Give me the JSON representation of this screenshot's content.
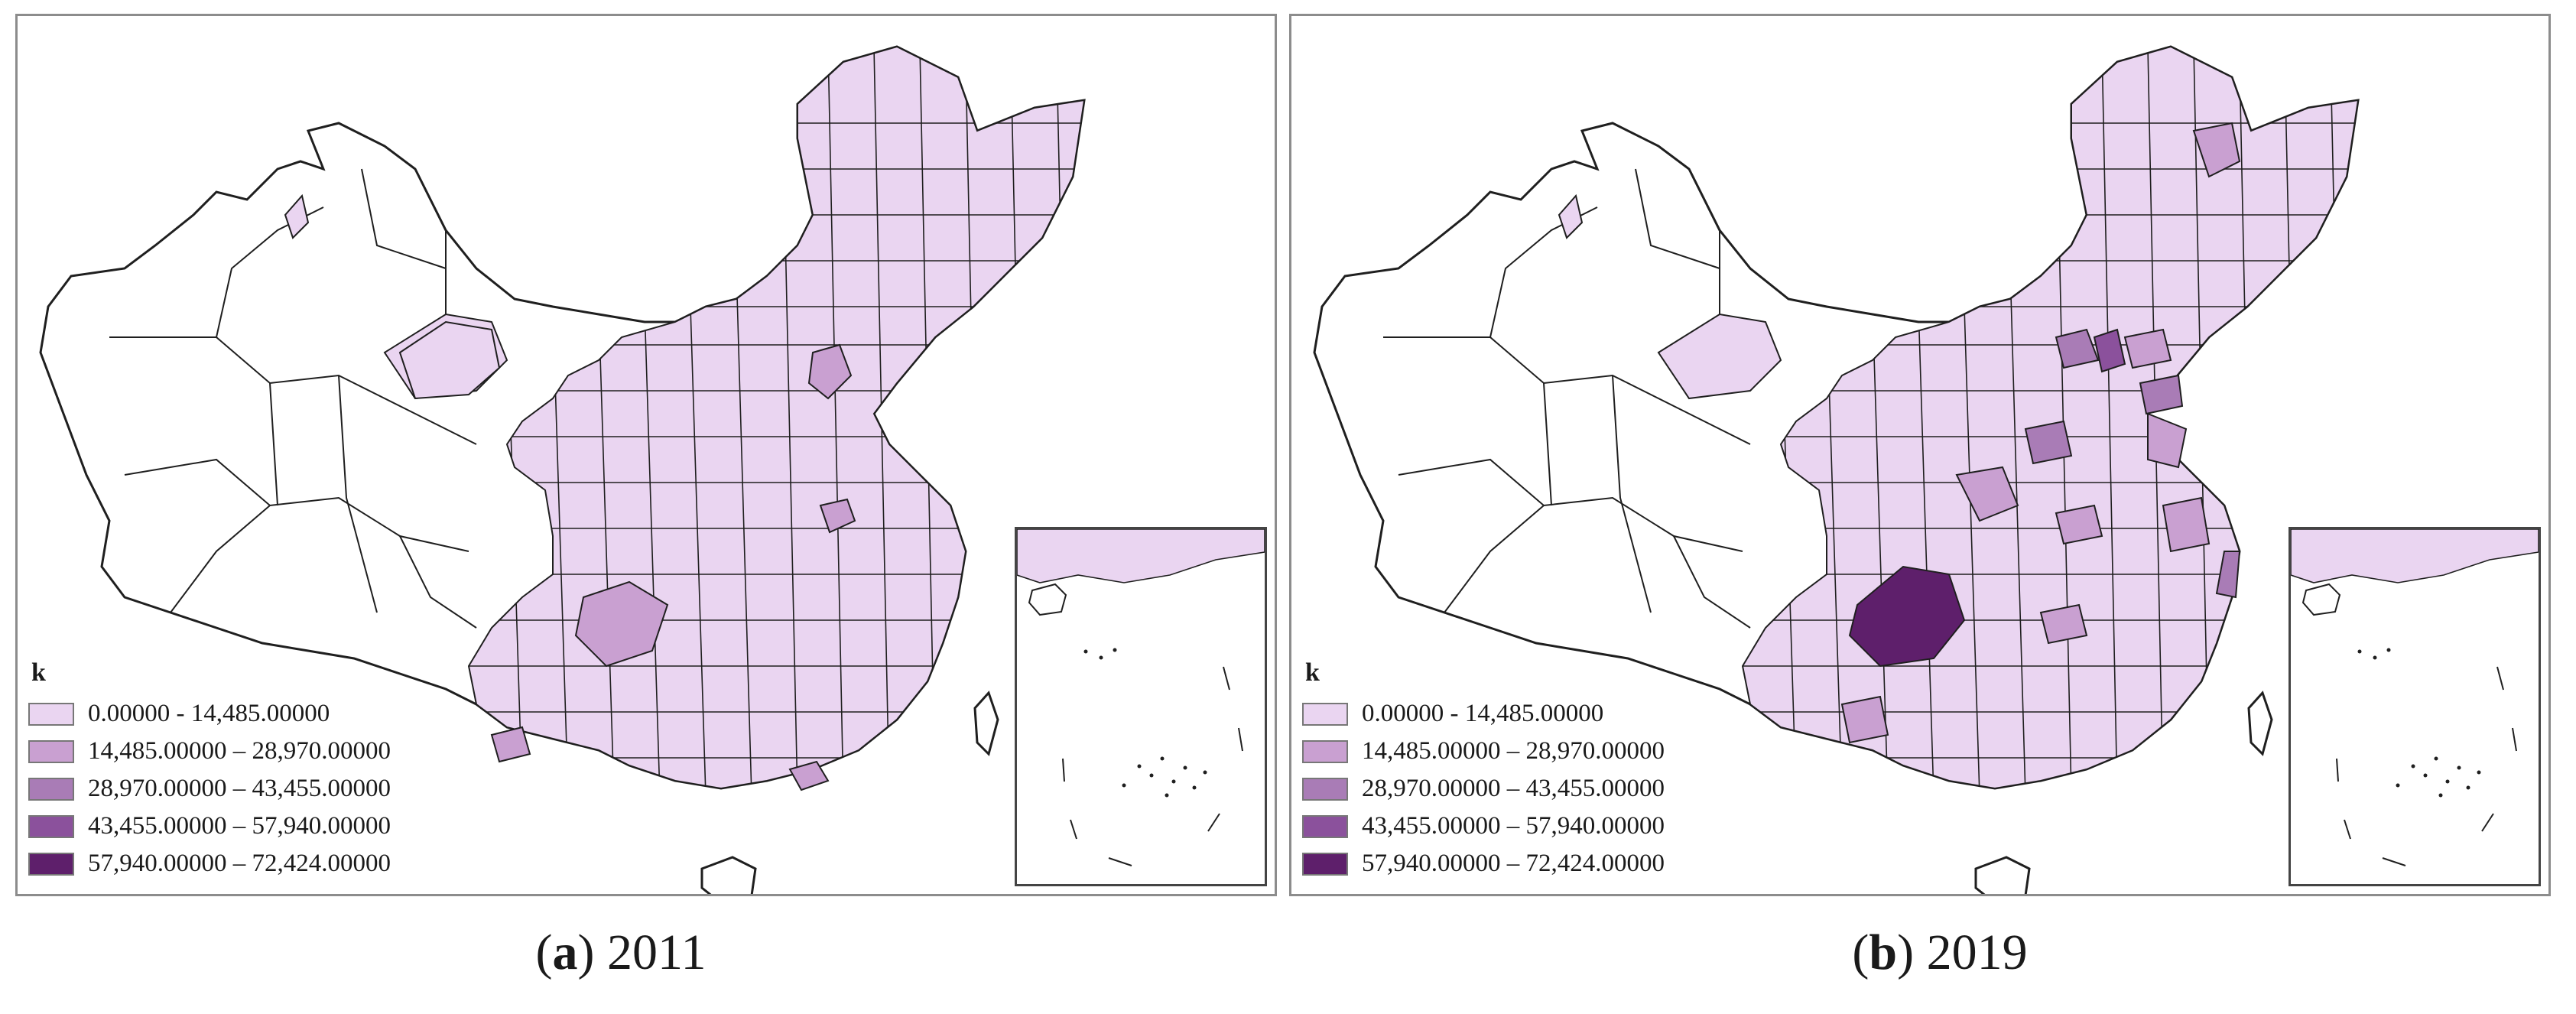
{
  "legend_title": "k",
  "classes": [
    {
      "label": "0.00000 - 14,485.00000",
      "color": "#ead5f1"
    },
    {
      "label": "14,485.00000 – 28,970.00000",
      "color": "#c9a0d1"
    },
    {
      "label": "28,970.00000 – 43,455.00000",
      "color": "#a97cb6"
    },
    {
      "label": "43,455.00000 – 57,940.00000",
      "color": "#8b519c"
    },
    {
      "label": "57,940.00000 – 72,424.00000",
      "color": "#5e1f6b"
    }
  ],
  "panels": [
    {
      "letter": "a",
      "year": "2011"
    },
    {
      "letter": "b",
      "year": "2019"
    }
  ],
  "colors": {
    "outline": "#1f1f1f",
    "frame": "#8c8c8c",
    "nodata": "#ffffff"
  }
}
